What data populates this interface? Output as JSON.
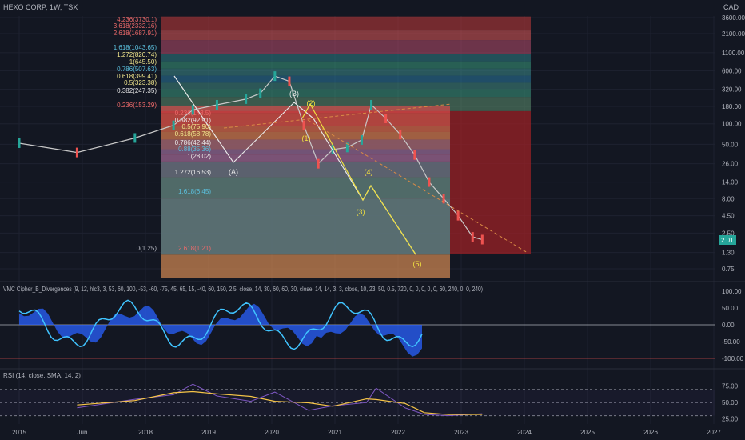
{
  "header": {
    "symbol": "HEXO CORP, 1W, TSX",
    "currency": "CAD"
  },
  "colors": {
    "bg": "#131722",
    "grid": "#1e2230",
    "axis_text": "#b2b5be",
    "candle_up": "#26a69a",
    "candle_down": "#ef5350",
    "wave": "#e8e8e8",
    "wave_yellow": "#f0e040",
    "fib_red": "#b22222",
    "fib_orange": "#d98a45",
    "fib_teal": "#2e8b8b",
    "price_tag": "#26a69a",
    "rsi_line": "#7e57c2",
    "rsi_ma": "#f7c548"
  },
  "chart_data": [
    {
      "type": "line",
      "title": "HEXO CORP, 1W, TSX",
      "scale": "log",
      "y_axis_ticks": [
        "3600.00",
        "2100.00",
        "1100.00",
        "600.00",
        "320.00",
        "180.00",
        "100.00",
        "50.00",
        "26.00",
        "14.00",
        "8.00",
        "4.50",
        "2.50",
        "1.30",
        "0.75"
      ],
      "last_price": "2.01",
      "x_ticks": [
        "2015",
        "Jun",
        "2018",
        "2019",
        "2020",
        "2021",
        "2022",
        "2023",
        "2024",
        "2025",
        "2026",
        "2027"
      ],
      "fib_levels_upper": [
        "4.236(3730.1)",
        "3.618(2332.16)",
        "2.618(1687.91)",
        "1.618(1043.65)",
        "1.272(820.74)",
        "1(645.50)",
        "0.786(507.63)",
        "0.618(399.41)",
        "0.5(323.38)",
        "0.382(247.35)",
        "0.236(153.29)"
      ],
      "fib_levels_lower": [
        "0.236(143.5)",
        "0.382(92.91)",
        "0.5(75.90)",
        "0.618(58.78)",
        "0.786(42.44)",
        "0.88(35.36)",
        "1(28.02)",
        "1.272(16.53)",
        "1.618(6.45)",
        "0(1.25)",
        "2.618(1.21)"
      ],
      "wave_labels": [
        "(A)",
        "(B)",
        "(1)",
        "(2)",
        "(3)",
        "(4)",
        "(5)"
      ],
      "price_series": {
        "x": [
          "2015",
          "2016",
          "2017",
          "2017-09",
          "2018",
          "2018-06",
          "2018-12",
          "2019-03",
          "2019-06",
          "2019-09",
          "2019-12",
          "2020-03",
          "2020-06",
          "2020-09",
          "2020-12",
          "2021-02",
          "2021-05",
          "2021-08",
          "2021-11",
          "2022-02",
          "2022-05",
          "2022-08",
          "2022-11",
          "2023-01"
        ],
        "y": [
          52,
          38,
          62,
          95,
          160,
          190,
          230,
          280,
          500,
          420,
          95,
          26,
          42,
          45,
          58,
          190,
          120,
          70,
          35,
          14,
          8,
          4.5,
          2.2,
          2.01
        ]
      }
    },
    {
      "type": "area",
      "title": "VMC Cipher_B_Divergences (9, 12, hlc3, 3, 53, 60, 100, -53, -60, -75, 45, 65, 15, -40, 60, 150, 2.5, close, 14, 30, 60, 60, 30, close, 14, 14, 3, 3, close, 10, 23, 50, 0.5, 720, 0, 0, 0, 0, 0, 60, 240, 0, 0, 240)",
      "y_axis_ticks": [
        "100.00",
        "50.00",
        "0.00",
        "-50.00",
        "-100.00"
      ]
    },
    {
      "type": "line",
      "title": "RSI (14, close, SMA, 14, 2)",
      "y_axis_ticks": [
        "75.00",
        "50.00",
        "25.00"
      ],
      "levels": [
        70,
        50,
        30
      ],
      "rsi_series": {
        "x": [
          "2016",
          "2017",
          "2017-09",
          "2018",
          "2018-06",
          "2019",
          "2019-06",
          "2020",
          "2020-06",
          "2021",
          "2021-03",
          "2021-09",
          "2022",
          "2022-06",
          "2023"
        ],
        "y": [
          42,
          55,
          62,
          78,
          60,
          52,
          66,
          38,
          45,
          50,
          72,
          42,
          32,
          30,
          33
        ]
      }
    }
  ]
}
